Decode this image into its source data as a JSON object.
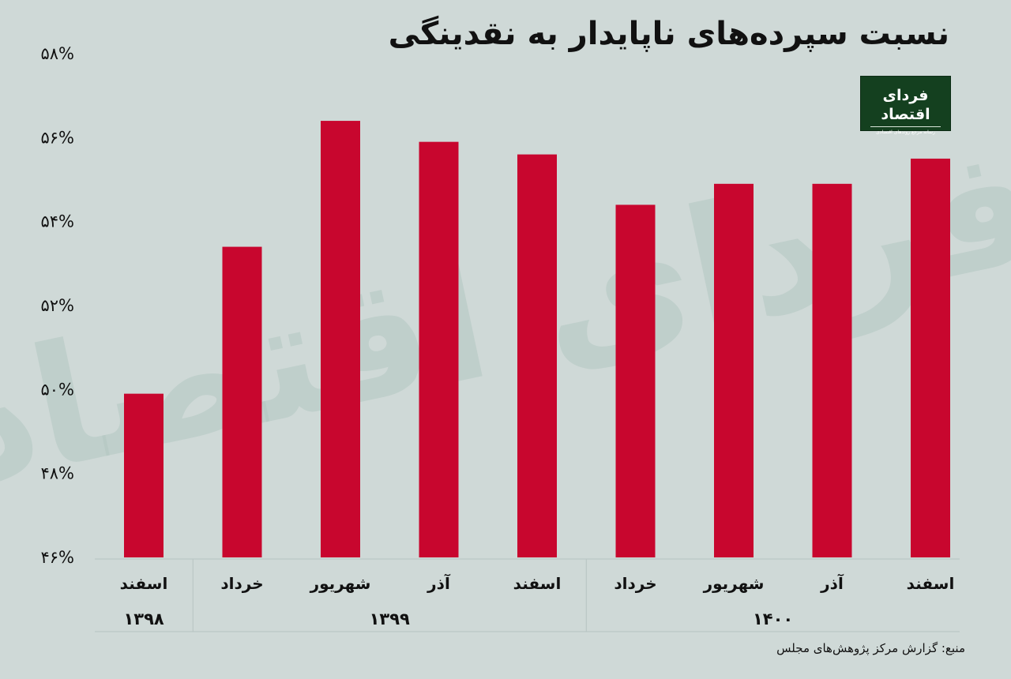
{
  "title": "نسبت سپرده‌های ناپایدار به نقدینگی",
  "source": "منبع: گزارش مرکز پژوهش‌های مجلس",
  "logo": {
    "name": "فردای اقتصاد",
    "tagline": "رسانه مرجع روندهای اقتصادی"
  },
  "colors": {
    "background": "#cfd9d7",
    "bar": "#c8062e",
    "watermark": "#b3c7c1",
    "logo_bg": "#14401f"
  },
  "chart_data": {
    "type": "bar",
    "title": "نسبت سپرده‌های ناپایدار به نقدینگی",
    "categories": [
      "اسفند",
      "خرداد",
      "شهریور",
      "آذر",
      "اسفند",
      "خرداد",
      "شهریور",
      "آذر",
      "اسفند"
    ],
    "years": [
      "۱۳۹۸",
      "۱۳۹۹",
      "۱۳۹۹",
      "۱۳۹۹",
      "۱۳۹۹",
      "۱۴۰۰",
      "۱۴۰۰",
      "۱۴۰۰",
      "۱۴۰۰"
    ],
    "year_groups": [
      {
        "label": "۱۳۹۸",
        "count": 1
      },
      {
        "label": "۱۳۹۹",
        "count": 4
      },
      {
        "label": "۱۴۰۰",
        "count": 4
      }
    ],
    "values": [
      49.9,
      53.4,
      56.4,
      55.9,
      55.6,
      54.4,
      54.9,
      54.9,
      55.5
    ],
    "ylim": [
      46,
      58
    ],
    "yticks": [
      46,
      48,
      50,
      52,
      54,
      56,
      58
    ],
    "ytick_labels": [
      "۴۶%",
      "۴۸%",
      "۵۰%",
      "۵۲%",
      "۵۴%",
      "۵۶%",
      "۵۸%"
    ],
    "xlabel": "",
    "ylabel": "",
    "grid": false,
    "legend": "none"
  }
}
